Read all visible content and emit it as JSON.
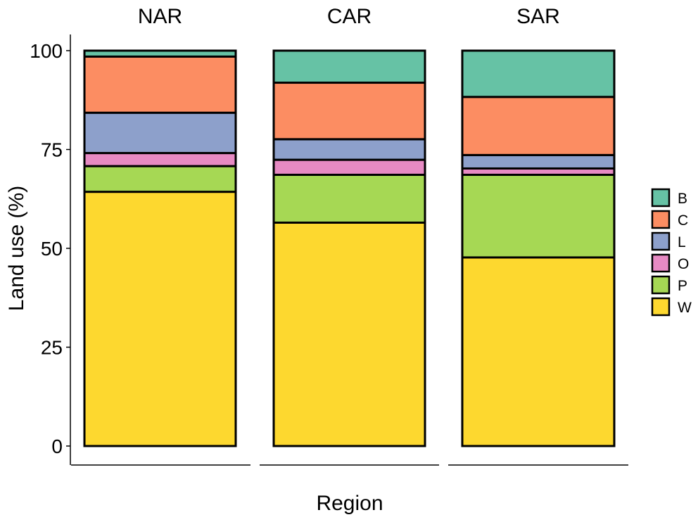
{
  "chart_data": {
    "type": "bar",
    "stacked": true,
    "faceted": true,
    "xlabel": "Region",
    "ylabel": "Land use (%)",
    "ylim": [
      0,
      100
    ],
    "yticks": [
      0,
      25,
      50,
      75,
      100
    ],
    "legend_position": "right",
    "grid": false,
    "facets": [
      "NAR",
      "CAR",
      "SAR"
    ],
    "series": [
      {
        "name": "W",
        "color": "#FDD82F",
        "values": [
          64.3,
          56.5,
          47.7
        ]
      },
      {
        "name": "P",
        "color": "#A6D854",
        "values": [
          6.5,
          12.1,
          20.9
        ]
      },
      {
        "name": "O",
        "color": "#E78AC3",
        "values": [
          3.3,
          3.8,
          1.6
        ]
      },
      {
        "name": "L",
        "color": "#8DA0CB",
        "values": [
          10.2,
          5.2,
          3.4
        ]
      },
      {
        "name": "C",
        "color": "#FC8D62",
        "values": [
          14.2,
          14.3,
          14.7
        ]
      },
      {
        "name": "B",
        "color": "#66C2A5",
        "values": [
          1.5,
          8.1,
          11.7
        ]
      }
    ],
    "legend_order": [
      "B",
      "C",
      "L",
      "O",
      "P",
      "W"
    ]
  }
}
